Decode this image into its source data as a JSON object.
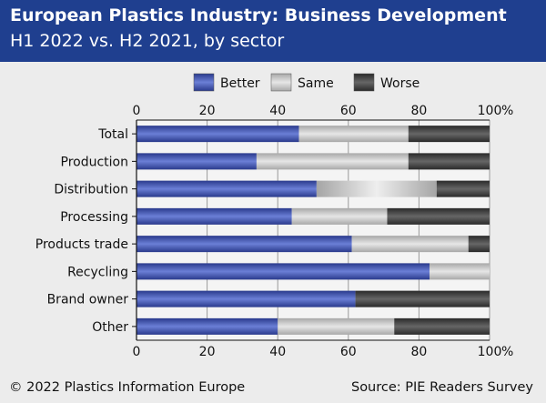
{
  "title": "European Plastics Industry: Business Development",
  "subtitle": "H1 2022 vs. H2 2021, by sector",
  "footer": {
    "left": "© 2022 Plastics Information Europe",
    "right": "Source: PIE Readers Survey"
  },
  "chart_data": {
    "type": "bar",
    "orientation": "horizontal",
    "stacked": true,
    "categories": [
      "Total",
      "Production",
      "Distribution",
      "Processing",
      "Products trade",
      "Recycling",
      "Brand owner",
      "Other"
    ],
    "series": [
      {
        "name": "Better",
        "color": "#3a4fb2",
        "values": [
          46,
          34,
          51,
          44,
          61,
          83,
          62,
          40
        ]
      },
      {
        "name": "Same",
        "color": "#c8c8c8",
        "values": [
          31,
          43,
          34,
          27,
          33,
          17,
          0,
          33
        ]
      },
      {
        "name": "Worse",
        "color": "#3e3e3e",
        "values": [
          23,
          23,
          15,
          29,
          6,
          0,
          38,
          27
        ]
      }
    ],
    "xlim": [
      0,
      100
    ],
    "x_ticks": [
      0,
      20,
      40,
      60,
      80,
      100
    ],
    "x_unit": "%",
    "grid": true,
    "legend_position": "top"
  }
}
